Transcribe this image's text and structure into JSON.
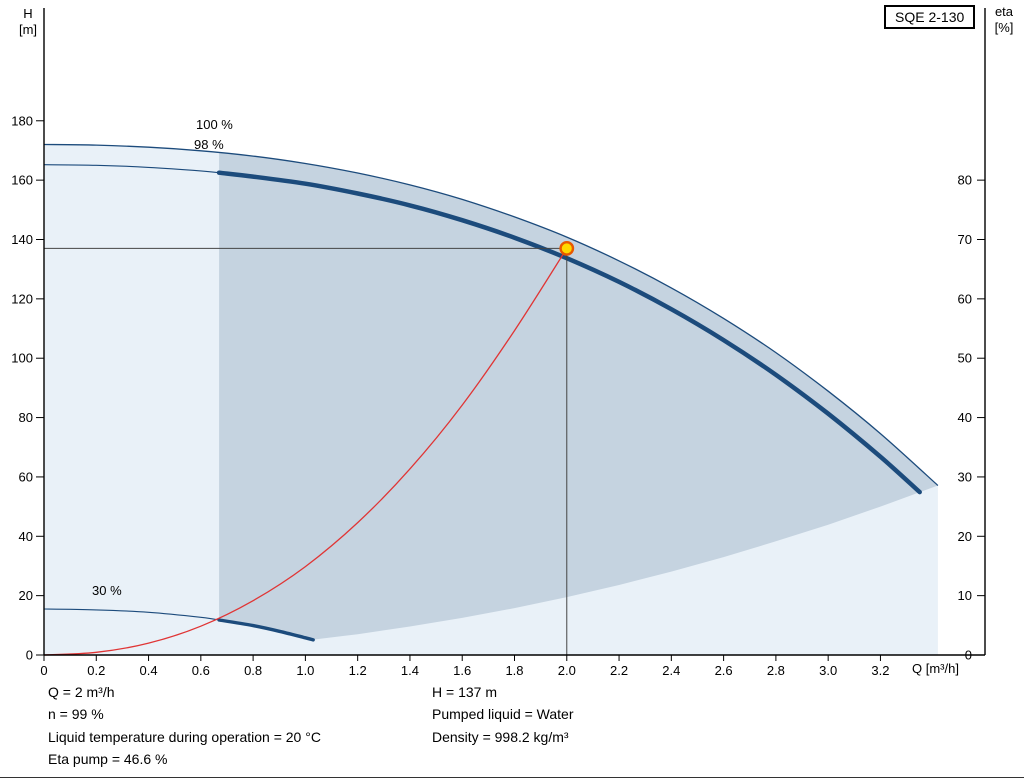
{
  "header": {
    "model": "SQE 2-130"
  },
  "axes": {
    "left_label": "H",
    "left_unit": "[m]",
    "right_label": "eta",
    "right_unit": "[%]",
    "x_label": "Q [m³/h]"
  },
  "curve_labels": {
    "p100": "100 %",
    "p98": "98 %",
    "p30": "30 %"
  },
  "footer": {
    "left": [
      "Q = 2 m³/h",
      "n = 99 %",
      "Liquid temperature during operation = 20 °C",
      "Eta pump = 46.6 %"
    ],
    "right": [
      "H = 137 m",
      "Pumped liquid = Water",
      "Density = 998.2 kg/m³"
    ]
  },
  "chart_data": {
    "type": "line",
    "title": "SQE 2-130",
    "xlabel": "Q [m³/h]",
    "ylabel_left": "H [m]",
    "ylabel_right": "eta [%]",
    "grid": false,
    "legend_position": "none",
    "q_range": [
      0,
      3.6
    ],
    "h_range": [
      0,
      218
    ],
    "eta_range": [
      0,
      109
    ],
    "x_ticks": [
      0,
      0.2,
      0.4,
      0.6,
      0.8,
      1.0,
      1.2,
      1.4,
      1.6,
      1.8,
      2.0,
      2.2,
      2.4,
      2.6,
      2.8,
      3.0,
      3.2
    ],
    "x_tick_labels": [
      "0",
      "0.2",
      "0.4",
      "0.6",
      "0.8",
      "1.0",
      "1.2",
      "1.4",
      "1.6",
      "1.8",
      "2.0",
      "2.2",
      "2.4",
      "2.6",
      "2.8",
      "3.0",
      "3.2"
    ],
    "h_ticks": [
      0,
      20,
      40,
      60,
      80,
      100,
      120,
      140,
      160,
      180
    ],
    "h_tick_labels": [
      "0",
      "20",
      "40",
      "60",
      "80",
      "100",
      "120",
      "140",
      "160",
      "180"
    ],
    "eta_ticks": [
      0,
      10,
      20,
      30,
      40,
      50,
      60,
      70,
      80
    ],
    "eta_tick_labels": [
      "0",
      "10",
      "20",
      "30",
      "40",
      "50",
      "60",
      "70",
      "80"
    ],
    "operating_point": {
      "q": 2,
      "h": 137,
      "n_percent": 99,
      "eta_pump_percent": 46.6
    },
    "operating_region_q_min": 0.67,
    "curves": {
      "p100": [
        [
          0,
          172
        ],
        [
          0.2,
          171.8
        ],
        [
          0.4,
          171.1
        ],
        [
          0.6,
          169.9
        ],
        [
          0.8,
          168.1
        ],
        [
          1,
          165.6
        ],
        [
          1.2,
          162.4
        ],
        [
          1.4,
          158.4
        ],
        [
          1.6,
          153.5
        ],
        [
          1.8,
          147.6
        ],
        [
          2,
          140.8
        ],
        [
          2.2,
          132.8
        ],
        [
          2.4,
          123.7
        ],
        [
          2.6,
          113.4
        ],
        [
          2.8,
          101.9
        ],
        [
          3,
          88.9
        ],
        [
          3.2,
          74.6
        ],
        [
          3.42,
          57.1
        ]
      ],
      "p98_thin": [
        [
          0,
          165.2
        ],
        [
          0.2,
          165.0
        ],
        [
          0.4,
          164.3
        ],
        [
          0.6,
          163.1
        ],
        [
          0.67,
          162.5
        ]
      ],
      "p98_thick": [
        [
          0.67,
          162.5
        ],
        [
          0.8,
          161.2
        ],
        [
          1,
          158.8
        ],
        [
          1.2,
          155.5
        ],
        [
          1.4,
          151.5
        ],
        [
          1.6,
          146.5
        ],
        [
          1.8,
          140.6
        ],
        [
          2,
          133.7
        ],
        [
          2.2,
          125.7
        ],
        [
          2.4,
          116.5
        ],
        [
          2.6,
          106.1
        ],
        [
          2.8,
          94.4
        ],
        [
          3,
          81.3
        ],
        [
          3.2,
          66.8
        ],
        [
          3.35,
          54.9
        ]
      ],
      "p30_thin": [
        [
          0,
          15.5
        ],
        [
          0.2,
          15.2
        ],
        [
          0.4,
          14.4
        ],
        [
          0.6,
          12.7
        ],
        [
          0.67,
          11.8
        ]
      ],
      "p30_thick": [
        [
          0.67,
          11.8
        ],
        [
          0.8,
          9.9
        ],
        [
          0.9,
          8.0
        ],
        [
          1,
          5.8
        ],
        [
          1.03,
          5.1
        ]
      ],
      "locus": [
        [
          1.03,
          5.2
        ],
        [
          1.2,
          7.0
        ],
        [
          1.4,
          9.6
        ],
        [
          1.6,
          12.5
        ],
        [
          1.8,
          15.8
        ],
        [
          2,
          19.5
        ],
        [
          2.2,
          23.6
        ],
        [
          2.4,
          28.1
        ],
        [
          2.6,
          33.0
        ],
        [
          2.8,
          38.3
        ],
        [
          3,
          43.9
        ],
        [
          3.2,
          50.0
        ],
        [
          3.42,
          57.1
        ]
      ],
      "duty_curve": [
        [
          0,
          0
        ],
        [
          0.2,
          0.9
        ],
        [
          0.4,
          4.0
        ],
        [
          0.6,
          9.7
        ],
        [
          0.8,
          18.3
        ],
        [
          1,
          29.8
        ],
        [
          1.2,
          44.6
        ],
        [
          1.4,
          62.7
        ],
        [
          1.6,
          84.2
        ],
        [
          1.8,
          109.3
        ],
        [
          2,
          137
        ]
      ]
    },
    "colors": {
      "envelope_fill": "#e9f1f8",
      "operating_fill": "#c5d3e0",
      "curve": "#1c4b7c",
      "efficiency_curve": "#e03535",
      "duty_lines": "#444444",
      "marker_fill": "#ffd800",
      "marker_stroke": "#e85800"
    }
  }
}
